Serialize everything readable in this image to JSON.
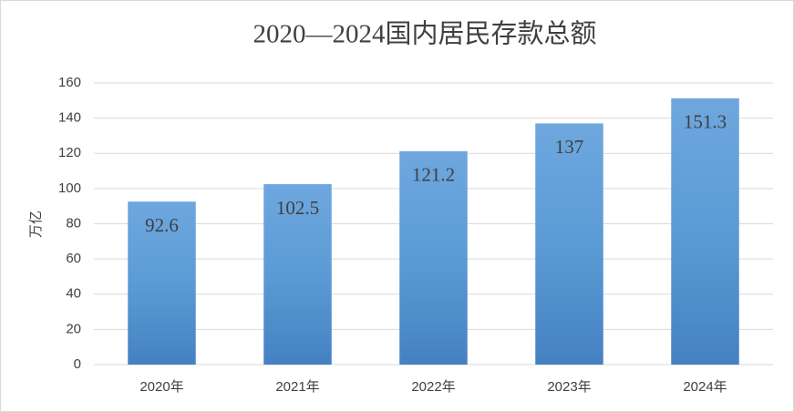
{
  "chart_data": {
    "type": "bar",
    "title": "2020—2024国内居民存款总额",
    "y_label": "万亿",
    "categories": [
      "2020年",
      "2021年",
      "2022年",
      "2023年",
      "2024年"
    ],
    "values": [
      92.6,
      102.5,
      121.2,
      137,
      151.3
    ],
    "color": "#5b9bd5",
    "ylim": [
      0,
      160
    ],
    "yticks": [
      0,
      20,
      40,
      60,
      80,
      100,
      120,
      140,
      160
    ],
    "grid": true
  }
}
